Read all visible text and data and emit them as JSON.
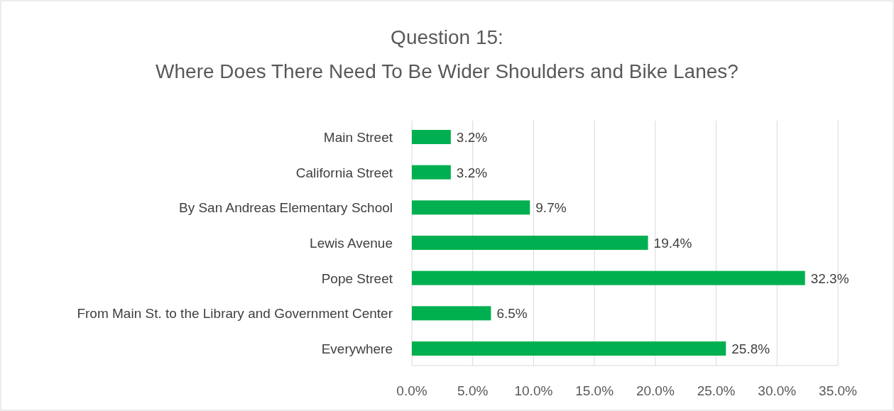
{
  "chart_data": {
    "type": "bar",
    "orientation": "horizontal",
    "title": "Question 15:",
    "subtitle": "Where Does There Need To Be Wider Shoulders and Bike Lanes?",
    "categories": [
      "Main Street",
      "California Street",
      "By San Andreas Elementary School",
      "Lewis Avenue",
      "Pope Street",
      "From Main St. to the Library and Government Center",
      "Everywhere"
    ],
    "values": [
      3.2,
      3.2,
      9.7,
      19.4,
      32.3,
      6.5,
      25.8
    ],
    "value_labels": [
      "3.2%",
      "3.2%",
      "9.7%",
      "19.4%",
      "32.3%",
      "6.5%",
      "25.8%"
    ],
    "color": "#00b050",
    "xlim": [
      0,
      35
    ],
    "xticks": [
      {
        "value": 0,
        "label": "0.0%"
      },
      {
        "value": 5,
        "label": "5.0%"
      },
      {
        "value": 10,
        "label": "10.0%"
      },
      {
        "value": 15,
        "label": "15.0%"
      },
      {
        "value": 20,
        "label": "20.0%"
      },
      {
        "value": 25,
        "label": "25.0%"
      },
      {
        "value": 30,
        "label": "30.0%"
      },
      {
        "value": 35,
        "label": "35.0%"
      }
    ],
    "grid": "x"
  }
}
